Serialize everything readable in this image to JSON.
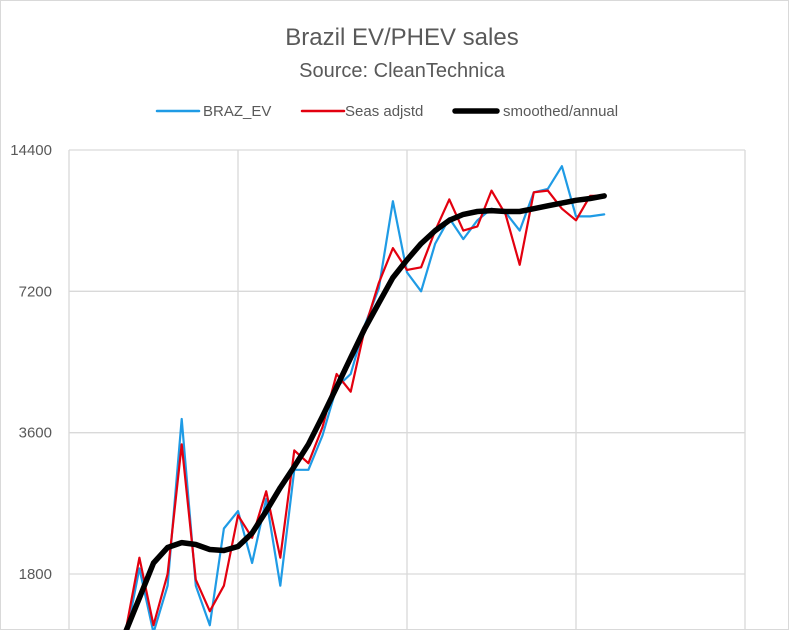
{
  "chart_data": {
    "type": "line",
    "title": "Brazil EV/PHEV sales",
    "subtitle": "Source: CleanTechnica",
    "xlabel": "",
    "ylabel": "",
    "y_scale": "log",
    "ylim": [
      1400,
      14400
    ],
    "xlim": [
      0,
      48
    ],
    "y_ticks": [
      1800,
      3600,
      7200,
      14400
    ],
    "y_tick_labels": [
      "1800",
      "3600",
      "7200",
      "14400"
    ],
    "x_gridlines": [
      0,
      12,
      24,
      36,
      48
    ],
    "grid": true,
    "legend_position": "top",
    "series": [
      {
        "name": "BRAZ_EV",
        "color": "#1f9be5",
        "line_width": "thin",
        "x": [
          4,
          5,
          6,
          7,
          8,
          9,
          10,
          11,
          12,
          13,
          14,
          15,
          16,
          17,
          18,
          19,
          20,
          21,
          22,
          23,
          24,
          25,
          26,
          27,
          28,
          29,
          30,
          31,
          32,
          33,
          34,
          35,
          36,
          37,
          38
        ],
        "values": [
          1300,
          1850,
          1350,
          1700,
          3850,
          1700,
          1400,
          2250,
          2450,
          1900,
          2600,
          1700,
          3000,
          3000,
          3550,
          4500,
          4800,
          6100,
          7300,
          11200,
          7900,
          7200,
          9100,
          10300,
          9300,
          10200,
          10800,
          10600,
          9700,
          11700,
          11900,
          13300,
          10400,
          10400,
          10500
        ],
        "note": "early and mid-range values estimated from gridlines"
      },
      {
        "name": "Seas adjstd",
        "color": "#e3000f",
        "line_width": "thin",
        "x": [
          4,
          5,
          6,
          7,
          8,
          9,
          10,
          11,
          12,
          13,
          14,
          15,
          16,
          17,
          18,
          19,
          20,
          21,
          22,
          23,
          24,
          25,
          26,
          27,
          28,
          29,
          30,
          31,
          32,
          33,
          34,
          35,
          36,
          37,
          38
        ],
        "values": [
          1350,
          1950,
          1400,
          1800,
          3400,
          1750,
          1500,
          1700,
          2400,
          2150,
          2700,
          1950,
          3300,
          3100,
          3700,
          4800,
          4400,
          6000,
          7500,
          8900,
          8000,
          8100,
          9700,
          11300,
          9700,
          9900,
          11800,
          10500,
          8200,
          11700,
          11800,
          10800,
          10200,
          11500,
          11500
        ],
        "note": "values estimated"
      },
      {
        "name": "smoothed/annual",
        "color": "#000000",
        "line_width": "thick",
        "x": [
          4,
          5,
          6,
          7,
          8,
          9,
          10,
          11,
          12,
          13,
          14,
          15,
          16,
          17,
          18,
          19,
          20,
          21,
          22,
          23,
          24,
          25,
          26,
          27,
          28,
          29,
          30,
          31,
          32,
          33,
          34,
          35,
          36,
          37,
          38
        ],
        "values": [
          1350,
          1600,
          1900,
          2050,
          2100,
          2080,
          2030,
          2020,
          2060,
          2200,
          2450,
          2750,
          3050,
          3400,
          3900,
          4500,
          5200,
          6000,
          6800,
          7700,
          8400,
          9100,
          9700,
          10200,
          10500,
          10650,
          10700,
          10650,
          10650,
          10800,
          10950,
          11100,
          11250,
          11350,
          11500
        ],
        "note": "values estimated"
      }
    ]
  }
}
